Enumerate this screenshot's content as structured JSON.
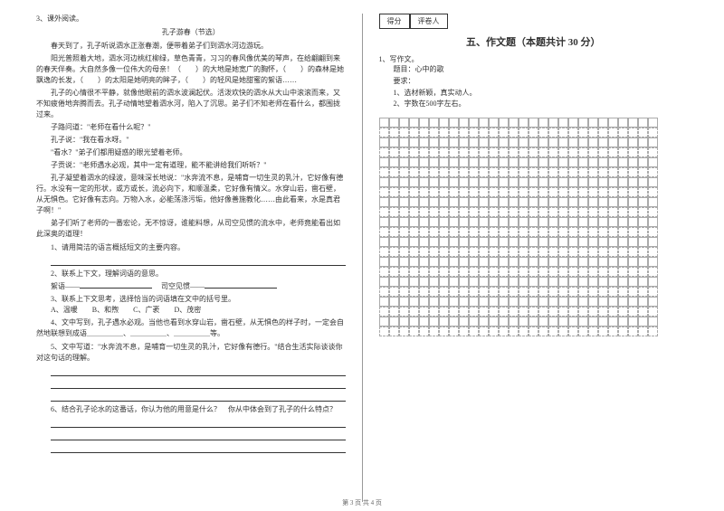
{
  "left": {
    "num": "3、课外阅读。",
    "title": "孔子游春（节选）",
    "p1": "春天到了，孔子听说泗水正涨春潮，便带着弟子们到泗水河边游玩。",
    "p2": "阳光普照着大地，泗水河边桃红柳绿，草色青青，习习的春风像优美的琴声，在给翩翩到来的春天伴奏。大自然多像一位伟大的母亲！（　　）的大地是她宽广的胸怀，（　　）的森林是她飘逸的长发，（　　）的太阳是她明亮的眸子，（　　）的轻风是她甜蜜的絮语……",
    "p3": "孔子的心情很不平静，就像他眼前的泗水波澜起伏。活泼欢快的泗水从大山中滚滚而来，又不知疲倦地奔腾而去。孔子动情地望着泗水河，陷入了沉思。弟子们不知老师在看什么，都围拢过来。",
    "p4": "子路问道：\"老师在看什么呢？\"",
    "p5": "孔子说：\"我在看水呀。\"",
    "p6": "\"看水？\"弟子们都用疑惑的眼光望着老师。",
    "p7": "子贡说：\"老师遇水必观，其中一定有道理，能不能讲给我们听听？\"",
    "p8": "孔子凝望着泗水的绿波，意味深长地说：\"水奔流不息，是哺育一切生灵的乳汁，它好像有德行。水没有一定的形状，或方或长，流必向下，和顺温柔，它好像有情义。水穿山岩，凿石壁，从无惧色。它好像有志向。万物入水，必能荡涤污垢，他好像善施教化……由此看来，水是真君子啊！\"",
    "p9": "弟子们听了老师的一番宏论，无不惊讶，谁能料想，从司空见惯的流水中，老师竟能看出如此深奥的道理！",
    "q1": "1、请用简洁的语言概括短文的主要内容。",
    "q2": "2、联系上下文，理解词语的意思。",
    "q2a": "絮语——",
    "q2b": "司空见惯——",
    "q3": "3、联系上下文思考，选择恰当的词语填在文中的括号里。",
    "q3opts": "A、温暖　　B、和煦　　C、广袤　　D、茂密",
    "q4": "4、文中写到，孔子遇水必观。当他也看到水穿山岩，凿石壁，从无惧色的样子时，一定会自然地联想到成语＿＿＿＿＿、＿＿＿＿＿、＿＿＿＿＿等。",
    "q5": "5、文中写道：\"水奔流不息，是哺育一切生灵的乳汁，它好像有德行。\"结合生活实际谈谈你对这句话的理解。",
    "q6": "6、结合孔子论水的这番话，你认为他的用意是什么？　你从中体会到了孔子的什么特点？"
  },
  "right": {
    "score1": "得分",
    "score2": "评卷人",
    "sectionTitle": "五、作文题（本题共计 30 分）",
    "w1": "1、写作文。",
    "w2": "题目：心中的歌",
    "w3": "要求：",
    "w4": "1、选材新颖，真实动人。",
    "w5": "2、字数在500字左右。"
  },
  "grid": {
    "cols": 28,
    "rows": 22
  },
  "footer": "第 3 页 共 4 页",
  "colors": {
    "text": "#333333",
    "border": "#aaaaaa",
    "bg": "#ffffff"
  }
}
